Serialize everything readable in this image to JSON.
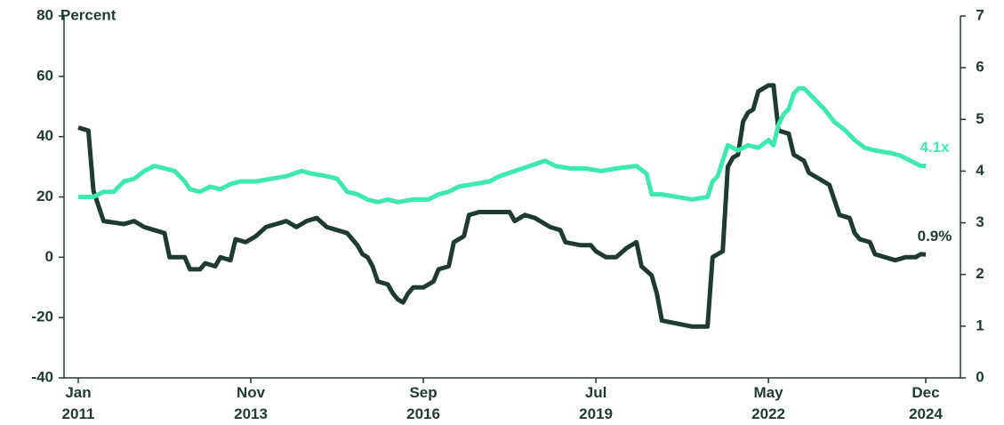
{
  "chart_data": {
    "type": "line",
    "y_label": "Percent",
    "xlim": [
      "2011-01",
      "2024-12"
    ],
    "xticks": [
      {
        "value": "2011-01",
        "label": "Jan 2011"
      },
      {
        "value": "2013-11",
        "label": "Nov 2013"
      },
      {
        "value": "2016-09",
        "label": "Sep 2016"
      },
      {
        "value": "2019-07",
        "label": "Jul 2019"
      },
      {
        "value": "2022-05",
        "label": "May 2022"
      },
      {
        "value": "2024-12",
        "label": "Dec 2024"
      }
    ],
    "ylim": [
      -40,
      80
    ],
    "yticks": [
      -40,
      -20,
      0,
      20,
      40,
      60,
      80
    ],
    "y2lim": [
      0,
      7
    ],
    "y2ticks": [
      0,
      1,
      2,
      3,
      4,
      5,
      6,
      7
    ],
    "series": [
      {
        "color": "#1f3a2f",
        "axis": "y",
        "x": [
          "2011-01",
          "2011-03",
          "2011-04",
          "2011-06",
          "2011-10",
          "2011-12",
          "2012-02",
          "2012-04",
          "2012-06",
          "2012-07",
          "2012-10",
          "2012-11",
          "2013-01",
          "2013-02",
          "2013-04",
          "2013-05",
          "2013-07",
          "2013-08",
          "2013-10",
          "2013-12",
          "2014-02",
          "2014-04",
          "2014-06",
          "2014-08",
          "2014-10",
          "2014-12",
          "2015-02",
          "2015-04",
          "2015-06",
          "2015-08",
          "2015-09",
          "2015-10",
          "2015-11",
          "2015-12",
          "2016-02",
          "2016-03",
          "2016-04",
          "2016-05",
          "2016-06",
          "2016-07",
          "2016-09",
          "2016-11",
          "2016-12",
          "2017-02",
          "2017-03",
          "2017-05",
          "2017-06",
          "2017-08",
          "2017-11",
          "2018-02",
          "2018-03",
          "2018-05",
          "2018-07",
          "2018-10",
          "2018-12",
          "2019-01",
          "2019-04",
          "2019-06",
          "2019-07",
          "2019-09",
          "2019-11",
          "2020-01",
          "2020-03",
          "2020-04",
          "2020-06",
          "2020-07",
          "2020-08",
          "2020-11",
          "2021-02",
          "2021-03",
          "2021-04",
          "2021-05",
          "2021-06",
          "2021-07",
          "2021-08",
          "2021-09",
          "2021-10",
          "2021-11",
          "2021-12",
          "2022-01",
          "2022-02",
          "2022-03",
          "2022-05",
          "2022-06",
          "2022-07",
          "2022-09",
          "2022-10",
          "2022-12",
          "2023-01",
          "2023-03",
          "2023-05",
          "2023-07",
          "2023-09",
          "2023-10",
          "2023-11",
          "2024-01",
          "2024-02",
          "2024-04",
          "2024-06",
          "2024-08",
          "2024-10",
          "2024-11",
          "2024-12"
        ],
        "values": [
          43,
          42,
          22,
          12,
          11,
          12,
          10,
          9,
          8,
          0,
          0,
          -4,
          -4,
          -2,
          -3,
          0,
          -1,
          6,
          5,
          7,
          10,
          11,
          12,
          10,
          12,
          13,
          10,
          9,
          8,
          4,
          1,
          0,
          -3,
          -8,
          -9,
          -12,
          -14,
          -15,
          -12,
          -10,
          -10,
          -8,
          -4,
          -3,
          5,
          7,
          14,
          15,
          15,
          15,
          12,
          14,
          13,
          10,
          9,
          5,
          4,
          4,
          2,
          0,
          0,
          3,
          5,
          -3,
          -6,
          -12,
          -21,
          -22,
          -23,
          -23,
          -23,
          -23,
          0,
          1,
          2,
          30,
          33,
          34,
          45,
          48,
          49,
          55,
          57,
          57,
          42,
          41,
          34,
          32,
          28,
          26,
          24,
          14,
          13,
          8,
          6,
          5,
          1,
          0,
          -1,
          0,
          0,
          1,
          0.9
        ]
      },
      {
        "color": "#3ee8b0",
        "axis": "y2",
        "x": [
          "2011-01",
          "2011-04",
          "2011-06",
          "2011-08",
          "2011-10",
          "2011-12",
          "2012-02",
          "2012-04",
          "2012-06",
          "2012-08",
          "2012-10",
          "2012-11",
          "2013-01",
          "2013-03",
          "2013-05",
          "2013-07",
          "2013-09",
          "2013-12",
          "2014-03",
          "2014-06",
          "2014-09",
          "2014-11",
          "2015-02",
          "2015-04",
          "2015-06",
          "2015-08",
          "2015-10",
          "2015-12",
          "2016-02",
          "2016-04",
          "2016-07",
          "2016-10",
          "2016-12",
          "2017-02",
          "2017-04",
          "2017-07",
          "2017-10",
          "2017-12",
          "2018-03",
          "2018-06",
          "2018-09",
          "2018-11",
          "2019-02",
          "2019-05",
          "2019-08",
          "2019-11",
          "2020-03",
          "2020-05",
          "2020-06",
          "2020-08",
          "2020-11",
          "2021-02",
          "2021-05",
          "2021-06",
          "2021-07",
          "2021-09",
          "2021-11",
          "2022-01",
          "2022-03",
          "2022-05",
          "2022-06",
          "2022-07",
          "2022-08",
          "2022-09",
          "2022-10",
          "2022-11",
          "2022-12",
          "2023-02",
          "2023-04",
          "2023-06",
          "2023-08",
          "2023-10",
          "2023-12",
          "2024-02",
          "2024-05",
          "2024-07",
          "2024-09",
          "2024-11",
          "2024-12"
        ],
        "values": [
          3.5,
          3.5,
          3.6,
          3.6,
          3.8,
          3.85,
          4.0,
          4.1,
          4.05,
          4.0,
          3.8,
          3.65,
          3.6,
          3.7,
          3.65,
          3.75,
          3.8,
          3.8,
          3.85,
          3.9,
          4.0,
          3.95,
          3.9,
          3.85,
          3.6,
          3.55,
          3.45,
          3.4,
          3.45,
          3.4,
          3.45,
          3.45,
          3.55,
          3.6,
          3.7,
          3.75,
          3.8,
          3.9,
          4.0,
          4.1,
          4.2,
          4.1,
          4.05,
          4.05,
          4.0,
          4.05,
          4.1,
          3.95,
          3.55,
          3.55,
          3.5,
          3.45,
          3.5,
          3.8,
          3.9,
          4.5,
          4.4,
          4.5,
          4.45,
          4.6,
          4.5,
          4.9,
          5.1,
          5.2,
          5.5,
          5.6,
          5.6,
          5.4,
          5.2,
          4.95,
          4.8,
          4.6,
          4.45,
          4.4,
          4.35,
          4.3,
          4.2,
          4.1,
          4.1
        ]
      }
    ],
    "annotations": [
      "0.9%",
      "4.1x"
    ]
  }
}
